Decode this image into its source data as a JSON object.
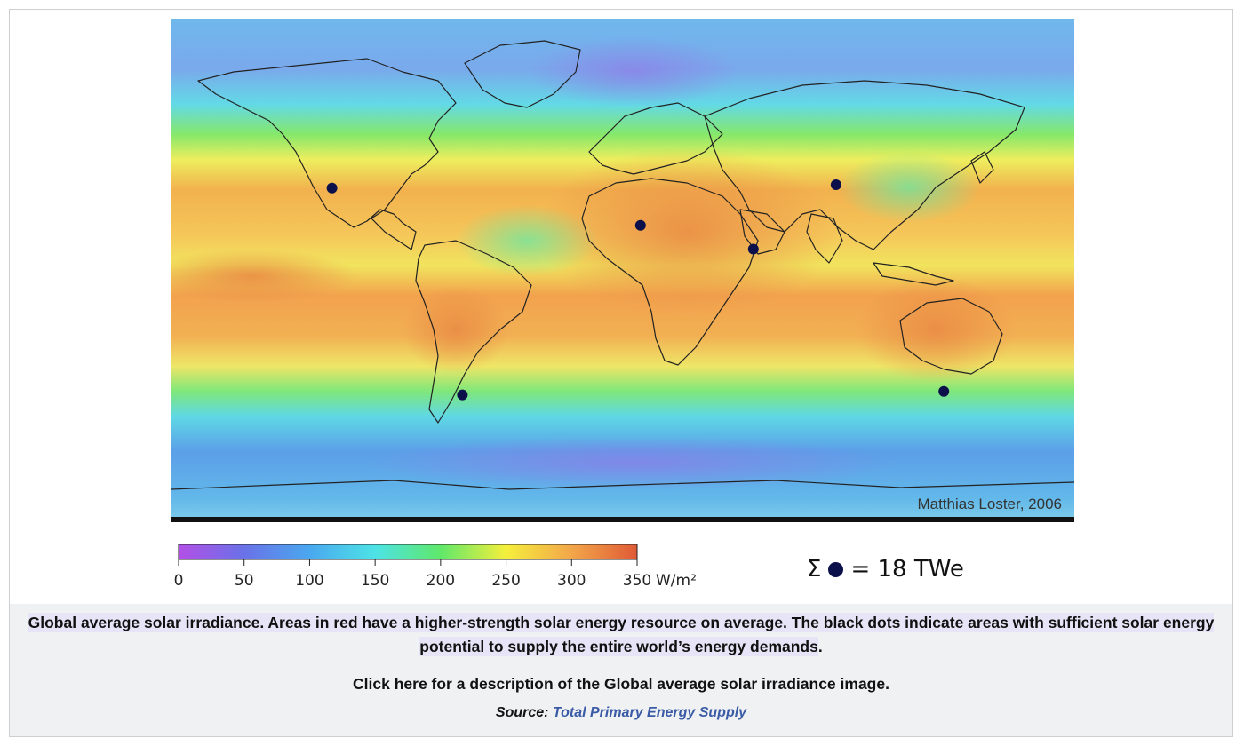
{
  "map": {
    "credit": "Matthias Loster, 2006",
    "dot_color": "#0b0f4a",
    "dots": [
      {
        "name": "southwest-north-america",
        "lon": -116,
        "lat": 35
      },
      {
        "name": "sahara",
        "lon": 7,
        "lat": 24
      },
      {
        "name": "arabian-peninsula",
        "lon": 52,
        "lat": 17
      },
      {
        "name": "central-asia",
        "lon": 85,
        "lat": 36
      },
      {
        "name": "south-america-andes",
        "lon": -64,
        "lat": -26
      },
      {
        "name": "australia",
        "lon": 128,
        "lat": -25
      }
    ]
  },
  "legend": {
    "ticks": [
      "0",
      "50",
      "100",
      "150",
      "200",
      "250",
      "300",
      "350"
    ],
    "unit": "W/m²",
    "min": 0,
    "max": 350,
    "colors": [
      "#b34fe6",
      "#6a72e8",
      "#4aa8ef",
      "#4de3e6",
      "#5fe86a",
      "#f5ef3c",
      "#f2a64a",
      "#e05a36"
    ]
  },
  "sum": {
    "prefix": "Σ",
    "value": "= 18 TWe"
  },
  "caption": {
    "main": "Global average solar irradiance. Areas in red have a higher-strength solar energy resource on average. The black dots indicate areas with sufficient solar energy potential to supply the entire world’s energy demands",
    "period": ".",
    "description": "Click here for a description of the Global average solar irradiance image.",
    "source_label": "Source:",
    "source_link": "Total Primary Energy Supply"
  }
}
